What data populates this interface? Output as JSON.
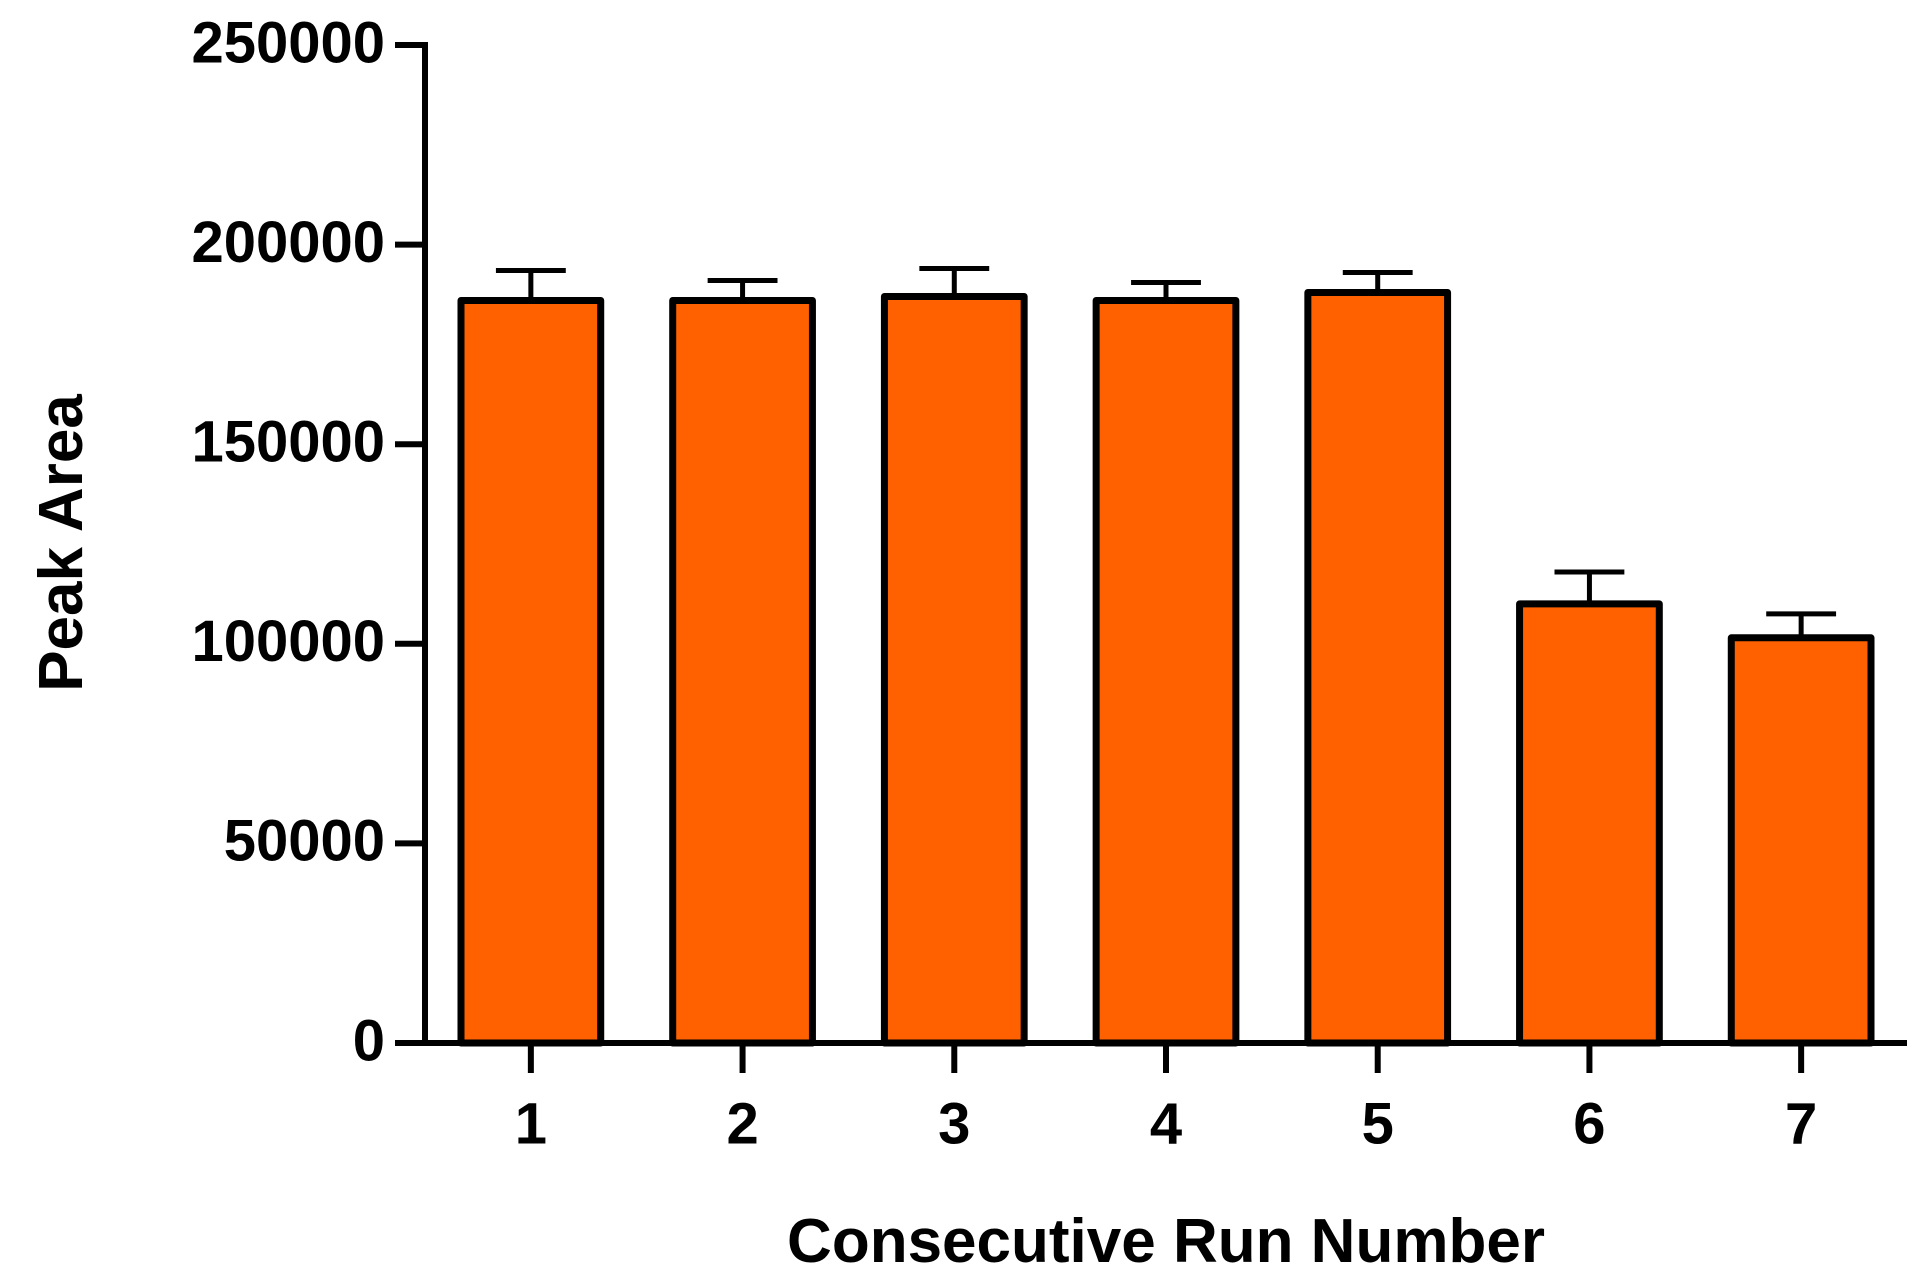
{
  "chart_data": {
    "type": "bar",
    "x_label": "Consecutive Run Number",
    "y_label": "Peak Area",
    "categories": [
      "1",
      "2",
      "3",
      "4",
      "5",
      "6",
      "7"
    ],
    "values": [
      186000,
      186000,
      187000,
      186000,
      188000,
      110000,
      101500
    ],
    "errors": [
      7500,
      5000,
      7000,
      4500,
      5000,
      8000,
      6000
    ],
    "color": "#ff6000",
    "ylim": [
      0,
      250000
    ],
    "yticks": [
      0,
      50000,
      100000,
      150000,
      200000,
      250000
    ],
    "grid": false
  }
}
